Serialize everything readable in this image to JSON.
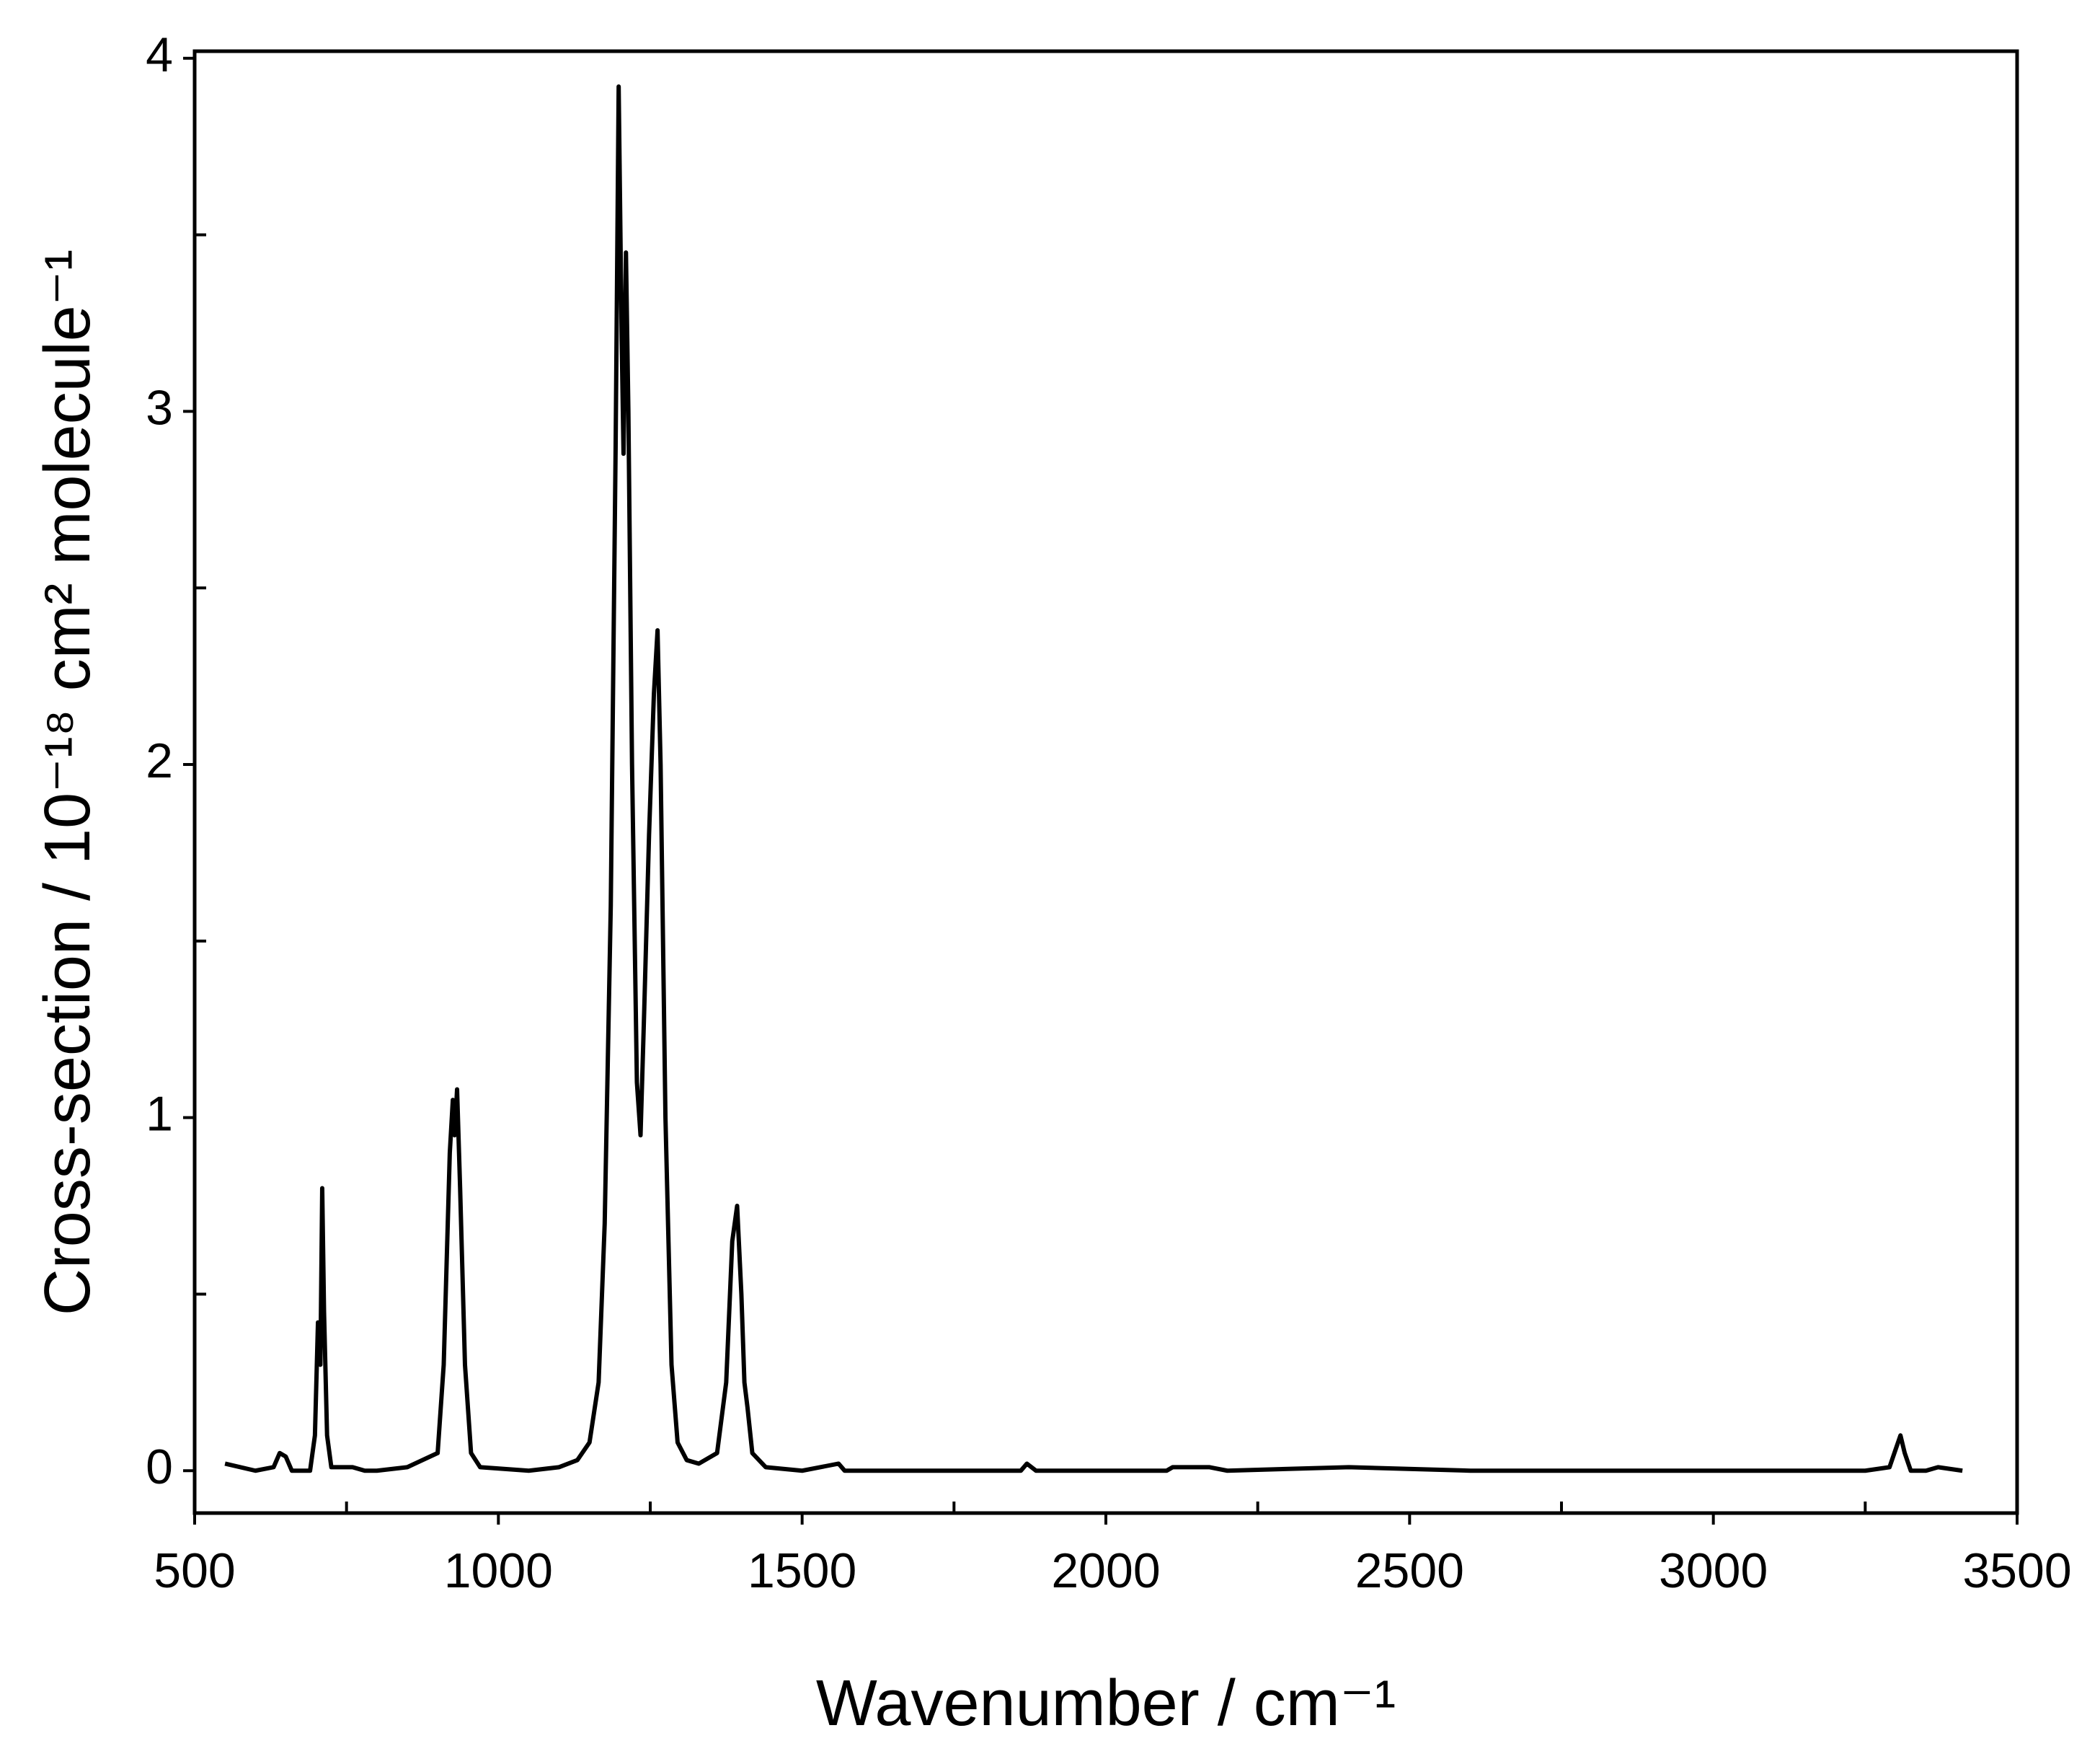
{
  "chart_data": {
    "type": "line",
    "xlabel": "Wavenumber / cm⁻¹",
    "ylabel": "Cross-section / 10⁻¹⁸ cm² molecule⁻¹",
    "xlim": [
      500,
      3500
    ],
    "ylim": [
      -0.12,
      4.02
    ],
    "xticks": [
      500,
      1000,
      1500,
      2000,
      2500,
      3000,
      3500
    ],
    "yticks": [
      0,
      1,
      2,
      3,
      4
    ],
    "xminorticks": [
      750,
      1250,
      1750,
      2250,
      2750,
      3250
    ],
    "yminorticks": [
      0.5,
      1.5,
      2.5,
      3.5
    ],
    "x": [
      550,
      600,
      630,
      640,
      650,
      660,
      690,
      698,
      703,
      707,
      710,
      713,
      718,
      725,
      760,
      780,
      800,
      850,
      900,
      910,
      920,
      925,
      928,
      932,
      937,
      945,
      955,
      970,
      1050,
      1100,
      1130,
      1150,
      1165,
      1175,
      1185,
      1193,
      1198,
      1203,
      1206,
      1210,
      1214,
      1220,
      1228,
      1234,
      1240,
      1248,
      1256,
      1262,
      1267,
      1275,
      1285,
      1295,
      1310,
      1330,
      1360,
      1375,
      1385,
      1393,
      1400,
      1405,
      1410,
      1418,
      1440,
      1500,
      1560,
      1570,
      1860,
      1870,
      1885,
      2100,
      2110,
      2170,
      2200,
      2400,
      2600,
      3250,
      3290,
      3300,
      3308,
      3315,
      3325,
      3350,
      3370,
      3410
    ],
    "series": [
      {
        "color": "#000000",
        "values": [
          0.02,
          0.0,
          0.01,
          0.05,
          0.04,
          0.0,
          0.0,
          0.1,
          0.42,
          0.3,
          0.8,
          0.45,
          0.1,
          0.01,
          0.01,
          0.0,
          0.0,
          0.01,
          0.05,
          0.3,
          0.9,
          1.05,
          0.95,
          1.08,
          0.8,
          0.3,
          0.05,
          0.01,
          0.0,
          0.01,
          0.03,
          0.08,
          0.25,
          0.7,
          1.6,
          2.9,
          3.92,
          3.2,
          2.88,
          3.45,
          3.0,
          2.0,
          1.1,
          0.95,
          1.3,
          1.8,
          2.2,
          2.38,
          2.0,
          1.0,
          0.3,
          0.08,
          0.03,
          0.02,
          0.05,
          0.25,
          0.65,
          0.75,
          0.5,
          0.25,
          0.18,
          0.05,
          0.01,
          0.0,
          0.02,
          0.0,
          0.0,
          0.02,
          0.0,
          0.0,
          0.01,
          0.01,
          0.0,
          0.01,
          0.0,
          0.0,
          0.01,
          0.06,
          0.1,
          0.05,
          0.0,
          0.0,
          0.01,
          0.0
        ]
      }
    ]
  }
}
